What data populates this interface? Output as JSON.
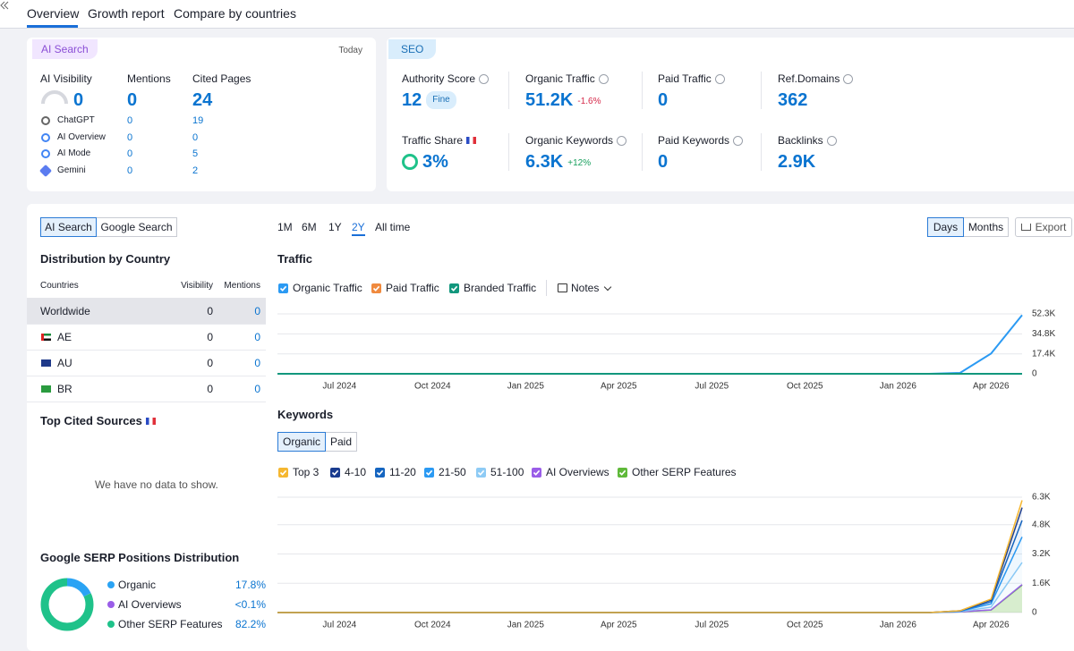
{
  "nav": {
    "tabs": [
      "Overview",
      "Growth report",
      "Compare by countries"
    ]
  },
  "ai_search": {
    "badge": "AI Search",
    "date": "Today",
    "metrics": [
      {
        "name": "AI Visibility",
        "value": 0
      },
      {
        "name": "Mentions",
        "value": 0
      },
      {
        "name": "Cited Pages",
        "value": 24
      }
    ],
    "rows": [
      {
        "name": "ChatGPT",
        "mentions": 0,
        "cited": 19
      },
      {
        "name": "AI Overview",
        "mentions": 0,
        "cited": 0
      },
      {
        "name": "AI Mode",
        "mentions": 0,
        "cited": 5
      },
      {
        "name": "Gemini",
        "mentions": 0,
        "cited": 2
      }
    ]
  },
  "seo": {
    "badge": "SEO",
    "metrics": [
      {
        "name": "Authority Score",
        "value": 12,
        "tag": "Fine"
      },
      {
        "name": "Organic Traffic",
        "value": "51.2K",
        "change": "-1.6%"
      },
      {
        "name": "Paid Traffic",
        "value": 0
      },
      {
        "name": "Ref.Domains",
        "value": 362
      },
      {
        "name": "Traffic Share",
        "value": "3%"
      },
      {
        "name": "Organic Keywords",
        "value": "6.3K",
        "change": "+12%"
      },
      {
        "name": "Paid Keywords",
        "value": 0
      },
      {
        "name": "Backlinks",
        "value": "2.9K"
      }
    ]
  },
  "distribution": {
    "toggle": [
      "AI Search",
      "Google Search"
    ],
    "title": "Distribution by Country",
    "columns": [
      "Countries",
      "Visibility",
      "Mentions"
    ],
    "rows": [
      [
        "Worldwide",
        0,
        0
      ],
      [
        "AE",
        0,
        0
      ],
      [
        "AU",
        0,
        0
      ],
      [
        "BR",
        0,
        0
      ]
    ]
  },
  "cited_sources": {
    "title": "Top Cited Sources",
    "empty": "We have no data to show."
  },
  "serp": {
    "title": "Google SERP Positions Distribution",
    "items": [
      {
        "name": "Organic",
        "value": 17.8,
        "label": "17.8%",
        "color": "#2aa3f4"
      },
      {
        "name": "AI Overviews",
        "value": 0.05,
        "label": "<0.1%",
        "color": "#9a5de8"
      },
      {
        "name": "Other SERP Features",
        "value": 82.2,
        "label": "82.2%",
        "color": "#1fc28a"
      }
    ]
  },
  "controls": {
    "periods": [
      "1M",
      "6M",
      "1Y",
      "2Y",
      "All time"
    ],
    "granularity": [
      "Days",
      "Months"
    ],
    "export": "Export"
  },
  "traffic": {
    "type": "line",
    "title": "Traffic",
    "notes": "Notes",
    "x": [
      "2024-05",
      "2024-06",
      "2024-07",
      "2024-08",
      "2024-09",
      "2024-10",
      "2024-11",
      "2024-12",
      "2025-01",
      "2025-02",
      "2025-03",
      "2025-04",
      "2025-05",
      "2025-06",
      "2025-07",
      "2025-08",
      "2025-09",
      "2025-10",
      "2025-11",
      "2025-12",
      "2026-01",
      "2026-02",
      "2026-03",
      "2026-04",
      "2026-05"
    ],
    "xlim": [
      "2024-05",
      "2026-05"
    ],
    "xticks": [
      {
        "value": "2024-07",
        "label": "Jul 2024"
      },
      {
        "value": "2024-10",
        "label": "Oct 2024"
      },
      {
        "value": "2025-01",
        "label": "Jan 2025"
      },
      {
        "value": "2025-04",
        "label": "Apr 2025"
      },
      {
        "value": "2025-07",
        "label": "Jul 2025"
      },
      {
        "value": "2025-10",
        "label": "Oct 2025"
      },
      {
        "value": "2026-01",
        "label": "Jan 2026"
      },
      {
        "value": "2026-04",
        "label": "Apr 2026"
      }
    ],
    "ylim": [
      0,
      52300
    ],
    "yticks": [
      0,
      {
        "value": 17400,
        "label": "17.4K"
      },
      {
        "value": 34800,
        "label": "34.8K"
      },
      {
        "value": 52300,
        "label": "52.3K"
      }
    ],
    "series": [
      {
        "name": "Organic Traffic",
        "color": "#2b9af3",
        "values": [
          0,
          0,
          0,
          0,
          0,
          0,
          0,
          0,
          0,
          0,
          0,
          0,
          0,
          0,
          0,
          0,
          0,
          0,
          0,
          0,
          0,
          0,
          800,
          17700,
          51200
        ]
      },
      {
        "name": "Paid Traffic",
        "color": "#f08a3e",
        "values": [
          0,
          0,
          0,
          0,
          0,
          0,
          0,
          0,
          0,
          0,
          0,
          0,
          0,
          0,
          0,
          0,
          0,
          0,
          0,
          0,
          0,
          0,
          0,
          0,
          0
        ]
      },
      {
        "name": "Branded Traffic",
        "color": "#12977d",
        "values": [
          0,
          0,
          0,
          0,
          0,
          0,
          0,
          0,
          0,
          0,
          0,
          0,
          0,
          0,
          0,
          0,
          0,
          0,
          0,
          0,
          0,
          0,
          0,
          0,
          0
        ]
      }
    ]
  },
  "keywords": {
    "type": "area",
    "title": "Keywords",
    "toggle": [
      "Organic",
      "Paid"
    ],
    "x": [
      "2024-05",
      "2024-06",
      "2024-07",
      "2024-08",
      "2024-09",
      "2024-10",
      "2024-11",
      "2024-12",
      "2025-01",
      "2025-02",
      "2025-03",
      "2025-04",
      "2025-05",
      "2025-06",
      "2025-07",
      "2025-08",
      "2025-09",
      "2025-10",
      "2025-11",
      "2025-12",
      "2026-01",
      "2026-02",
      "2026-03",
      "2026-04",
      "2026-05"
    ],
    "xlim": [
      "2024-05",
      "2026-05"
    ],
    "xticks": [
      {
        "value": "2024-07",
        "label": "Jul 2024"
      },
      {
        "value": "2024-10",
        "label": "Oct 2024"
      },
      {
        "value": "2025-01",
        "label": "Jan 2025"
      },
      {
        "value": "2025-04",
        "label": "Apr 2025"
      },
      {
        "value": "2025-07",
        "label": "Jul 2025"
      },
      {
        "value": "2025-10",
        "label": "Oct 2025"
      },
      {
        "value": "2026-01",
        "label": "Jan 2026"
      },
      {
        "value": "2026-04",
        "label": "Apr 2026"
      }
    ],
    "ylim": [
      0,
      6300
    ],
    "yticks": [
      0,
      {
        "value": 1600,
        "label": "1.6K"
      },
      {
        "value": 3200,
        "label": "3.2K"
      },
      {
        "value": 4800,
        "label": "4.8K"
      },
      {
        "value": 6300,
        "label": "6.3K"
      }
    ],
    "series": [
      {
        "name": "Top 3",
        "color": "#f5b731",
        "values": [
          0,
          0,
          0,
          0,
          0,
          0,
          0,
          0,
          0,
          0,
          0,
          0,
          0,
          0,
          0,
          0,
          0,
          0,
          0,
          0,
          0,
          0,
          5,
          50,
          400
        ]
      },
      {
        "name": "4-10",
        "color": "#1a3c8f",
        "values": [
          0,
          0,
          0,
          0,
          0,
          0,
          0,
          0,
          0,
          0,
          0,
          0,
          0,
          0,
          0,
          0,
          0,
          0,
          0,
          0,
          0,
          0,
          10,
          90,
          700
        ]
      },
      {
        "name": "11-20",
        "color": "#1565c0",
        "values": [
          0,
          0,
          0,
          0,
          0,
          0,
          0,
          0,
          0,
          0,
          0,
          0,
          0,
          0,
          0,
          0,
          0,
          0,
          0,
          0,
          0,
          0,
          15,
          120,
          900
        ]
      },
      {
        "name": "21-50",
        "color": "#2b9af3",
        "values": [
          0,
          0,
          0,
          0,
          0,
          0,
          0,
          0,
          0,
          0,
          0,
          0,
          0,
          0,
          0,
          0,
          0,
          0,
          0,
          0,
          0,
          0,
          20,
          180,
          1400
        ]
      },
      {
        "name": "51-100",
        "color": "#8ecbf5",
        "values": [
          0,
          0,
          0,
          0,
          0,
          0,
          0,
          0,
          0,
          0,
          0,
          0,
          0,
          0,
          0,
          0,
          0,
          0,
          0,
          0,
          0,
          0,
          15,
          150,
          1200
        ]
      },
      {
        "name": "AI Overviews",
        "color": "#9a5de8",
        "values": [
          0,
          0,
          0,
          0,
          0,
          0,
          0,
          0,
          0,
          0,
          0,
          0,
          0,
          0,
          0,
          0,
          0,
          0,
          0,
          0,
          0,
          0,
          0,
          5,
          30
        ]
      },
      {
        "name": "Other SERP Features",
        "color": "#5fb93a",
        "values": [
          0,
          0,
          0,
          0,
          0,
          0,
          0,
          0,
          0,
          0,
          0,
          0,
          0,
          0,
          0,
          0,
          0,
          0,
          0,
          0,
          0,
          0,
          35,
          140,
          1500
        ]
      }
    ]
  }
}
